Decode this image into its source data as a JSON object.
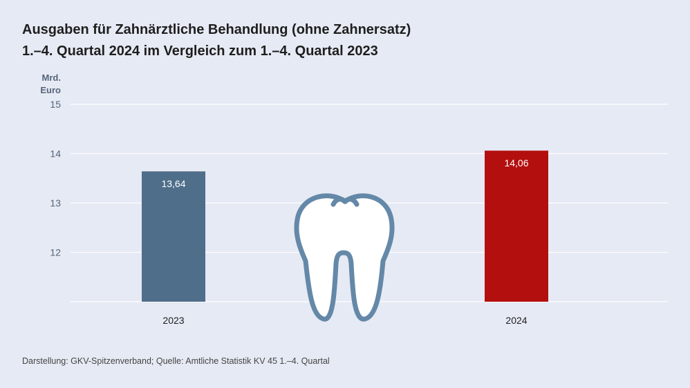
{
  "chart_data": {
    "type": "bar",
    "title": "Ausgaben für Zahnärztliche Behandlung (ohne Zahnersatz)",
    "subtitle": "1.–4. Quartal 2024 im Vergleich zum 1.–4. Quartal 2023",
    "ylabel_lines": [
      "Mrd.",
      "Euro"
    ],
    "categories": [
      "2023",
      "2024"
    ],
    "values": [
      13.64,
      14.06
    ],
    "value_labels": [
      "13,64",
      "14,06"
    ],
    "ylim": [
      11,
      15
    ],
    "yticks": [
      12,
      13,
      14,
      15
    ],
    "grid": true,
    "colors": [
      "#4f6e8a",
      "#b30f0f"
    ],
    "icon": "tooth-icon",
    "icon_color": "#6488a8"
  },
  "footer": {
    "source": "Darstellung: GKV-Spitzenverband; Quelle: Amtliche Statistik KV 45 1.–4. Quartal"
  }
}
